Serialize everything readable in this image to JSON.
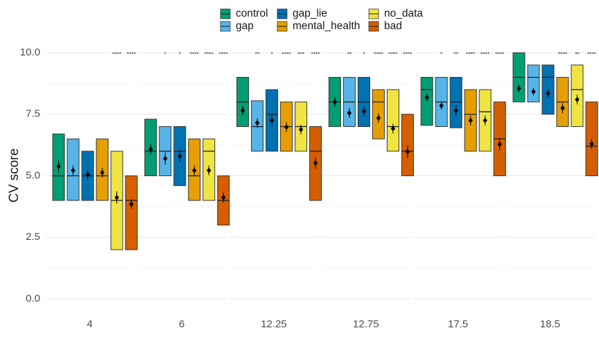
{
  "chart_data": {
    "type": "box",
    "ylabel": "CV score",
    "xlabel": "",
    "ylim": [
      0,
      10
    ],
    "yticks": [
      "0.0",
      "2.5",
      "5.0",
      "7.5",
      "10.0"
    ],
    "facets": [
      "4",
      "6",
      "12.25",
      "12.75",
      "17.5",
      "18.5"
    ],
    "grid": true,
    "legend_position": "top",
    "series": [
      {
        "name": "control",
        "color": "#009E73"
      },
      {
        "name": "gap",
        "color": "#56B4E9"
      },
      {
        "name": "gap_lie",
        "color": "#0072B2"
      },
      {
        "name": "mental_health",
        "color": "#E69F00"
      },
      {
        "name": "no_data",
        "color": "#F0E442"
      },
      {
        "name": "bad",
        "color": "#D55E00"
      }
    ],
    "boxes": [
      [
        {
          "q1": 4,
          "median": 5,
          "q3": 6.7,
          "mean": 5.38,
          "err": 0.25,
          "sig": ""
        },
        {
          "q1": 4,
          "median": 5,
          "q3": 6.5,
          "mean": 5.22,
          "err": 0.2,
          "sig": ""
        },
        {
          "q1": 4,
          "median": 5,
          "q3": 6,
          "mean": 5.05,
          "err": 0.2,
          "sig": ""
        },
        {
          "q1": 4,
          "median": 5,
          "q3": 6.5,
          "mean": 5.13,
          "err": 0.2,
          "sig": ""
        },
        {
          "q1": 2,
          "median": 4,
          "q3": 6,
          "mean": 4.12,
          "err": 0.25,
          "sig": "****"
        },
        {
          "q1": 2,
          "median": 4,
          "q3": 5,
          "mean": 3.85,
          "err": 0.2,
          "sig": "****"
        }
      ],
      [
        {
          "q1": 5,
          "median": 6,
          "q3": 7.3,
          "mean": 6.08,
          "err": 0.2,
          "sig": ""
        },
        {
          "q1": 5,
          "median": 6,
          "q3": 7,
          "mean": 5.7,
          "err": 0.25,
          "sig": "*"
        },
        {
          "q1": 4.6,
          "median": 6,
          "q3": 7,
          "mean": 5.8,
          "err": 0.25,
          "sig": "*"
        },
        {
          "q1": 4,
          "median": 5,
          "q3": 6.5,
          "mean": 5.22,
          "err": 0.2,
          "sig": "****"
        },
        {
          "q1": 4,
          "median": 6,
          "q3": 6.5,
          "mean": 5.22,
          "err": 0.2,
          "sig": "****"
        },
        {
          "q1": 3,
          "median": 4,
          "q3": 5,
          "mean": 4.12,
          "err": 0.2,
          "sig": "****"
        }
      ],
      [
        {
          "q1": 7,
          "median": 8,
          "q3": 9,
          "mean": 7.65,
          "err": 0.2,
          "sig": ""
        },
        {
          "q1": 6,
          "median": 7,
          "q3": 8.05,
          "mean": 7.15,
          "err": 0.2,
          "sig": "**"
        },
        {
          "q1": 6,
          "median": 7.5,
          "q3": 8.5,
          "mean": 7.25,
          "err": 0.25,
          "sig": "*"
        },
        {
          "q1": 6,
          "median": 7,
          "q3": 8,
          "mean": 6.98,
          "err": 0.2,
          "sig": "****"
        },
        {
          "q1": 6,
          "median": 7,
          "q3": 8,
          "mean": 6.88,
          "err": 0.2,
          "sig": "***"
        },
        {
          "q1": 4,
          "median": 6,
          "q3": 7,
          "mean": 5.52,
          "err": 0.25,
          "sig": "****"
        }
      ],
      [
        {
          "q1": 7,
          "median": 8,
          "q3": 9,
          "mean": 8,
          "err": 0.2,
          "sig": ""
        },
        {
          "q1": 7,
          "median": 8,
          "q3": 9,
          "mean": 7.55,
          "err": 0.2,
          "sig": "**"
        },
        {
          "q1": 7,
          "median": 8,
          "q3": 9,
          "mean": 7.62,
          "err": 0.2,
          "sig": "*"
        },
        {
          "q1": 6.5,
          "median": 8,
          "q3": 8.5,
          "mean": 7.35,
          "err": 0.2,
          "sig": "****"
        },
        {
          "q1": 6,
          "median": 7,
          "q3": 8.5,
          "mean": 6.92,
          "err": 0.2,
          "sig": "****"
        },
        {
          "q1": 5,
          "median": 6,
          "q3": 7.5,
          "mean": 5.98,
          "err": 0.25,
          "sig": "****"
        }
      ],
      [
        {
          "q1": 7.05,
          "median": 8.5,
          "q3": 9,
          "mean": 8.18,
          "err": 0.15,
          "sig": ""
        },
        {
          "q1": 7,
          "median": 8,
          "q3": 9,
          "mean": 7.85,
          "err": 0.15,
          "sig": "*"
        },
        {
          "q1": 6.95,
          "median": 8,
          "q3": 9,
          "mean": 7.65,
          "err": 0.2,
          "sig": "**"
        },
        {
          "q1": 6,
          "median": 7.5,
          "q3": 8.5,
          "mean": 7.25,
          "err": 0.2,
          "sig": "****"
        },
        {
          "q1": 6,
          "median": 7.6,
          "q3": 8.5,
          "mean": 7.25,
          "err": 0.2,
          "sig": "****"
        },
        {
          "q1": 5,
          "median": 6.5,
          "q3": 8,
          "mean": 6.28,
          "err": 0.25,
          "sig": "****"
        }
      ],
      [
        {
          "q1": 8,
          "median": 9,
          "q3": 10,
          "mean": 8.55,
          "err": 0.15,
          "sig": ""
        },
        {
          "q1": 8,
          "median": 9,
          "q3": 9.5,
          "mean": 8.42,
          "err": 0.15,
          "sig": ""
        },
        {
          "q1": 7.5,
          "median": 9,
          "q3": 9.5,
          "mean": 8.35,
          "err": 0.15,
          "sig": ""
        },
        {
          "q1": 7,
          "median": 8,
          "q3": 9,
          "mean": 7.75,
          "err": 0.2,
          "sig": "****"
        },
        {
          "q1": 7,
          "median": 8.5,
          "q3": 9.5,
          "mean": 8.1,
          "err": 0.2,
          "sig": "**"
        },
        {
          "q1": 5,
          "median": 6.2,
          "q3": 8,
          "mean": 6.3,
          "err": 0.2,
          "sig": "****"
        }
      ]
    ]
  }
}
